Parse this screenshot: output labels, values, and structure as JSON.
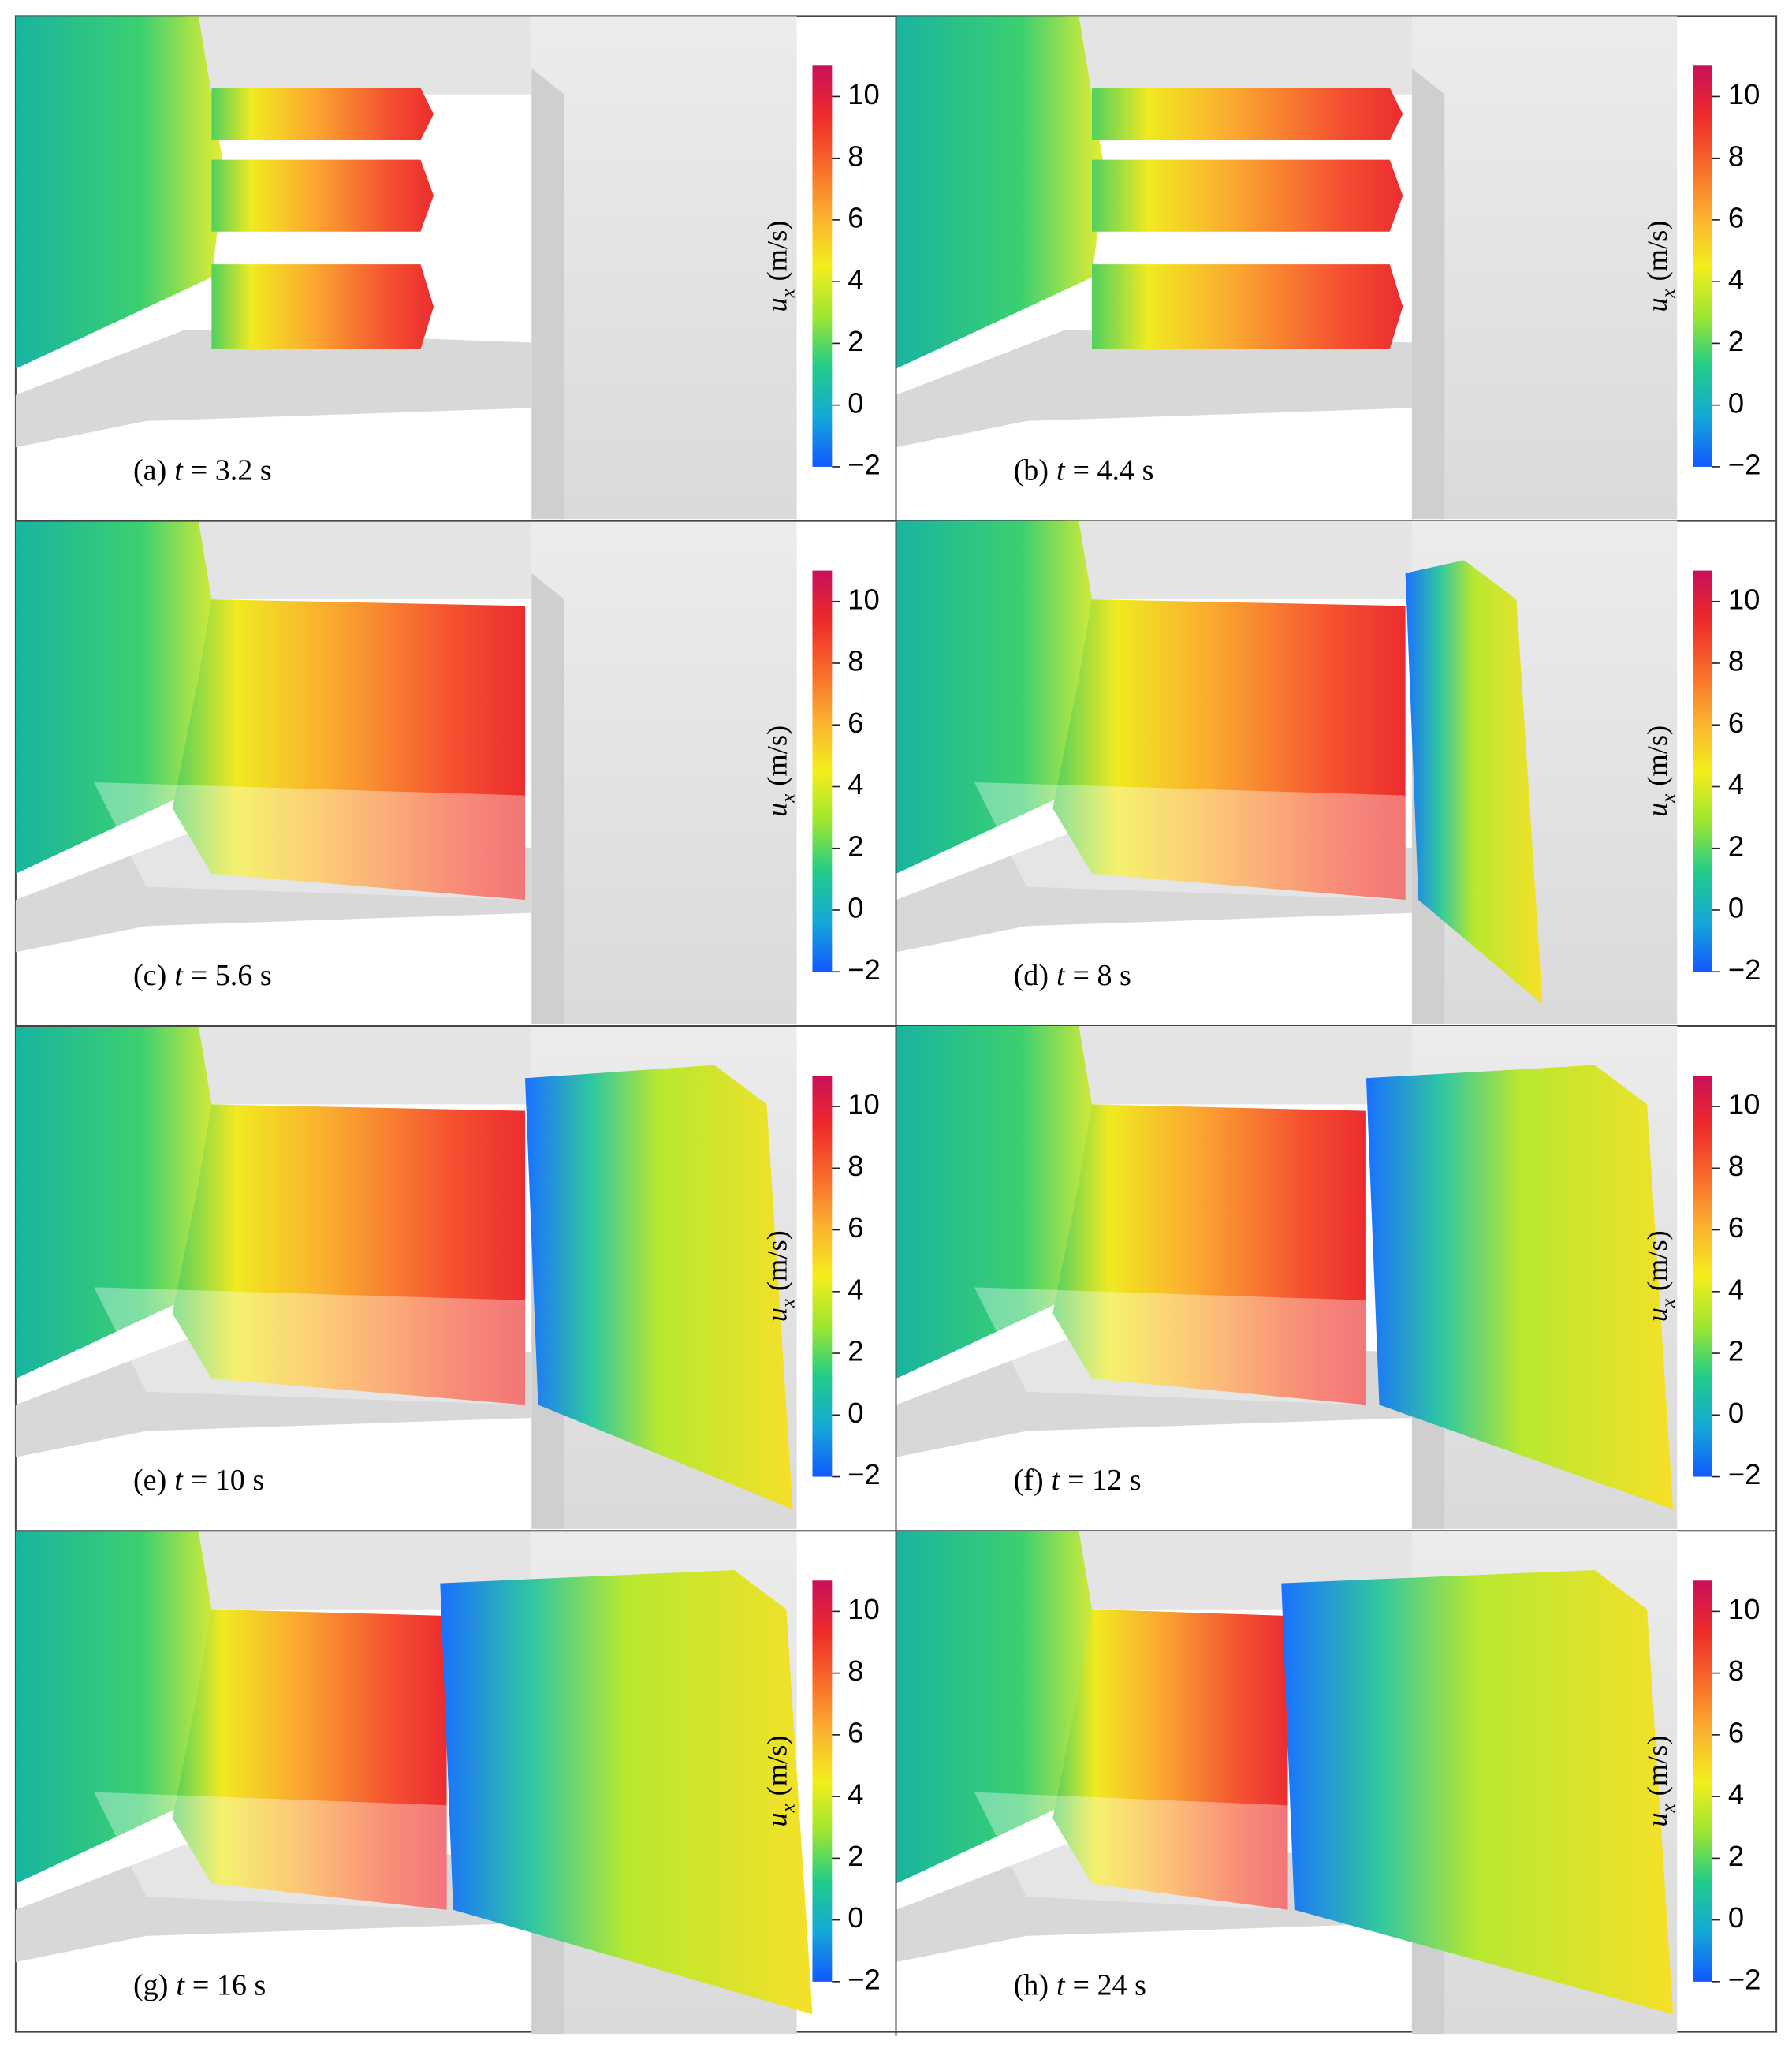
{
  "colorbar": {
    "symbol": "u",
    "subscript": "x",
    "unit": "(m/s)",
    "range": [
      -2,
      11
    ],
    "ticks": [
      {
        "value": -2,
        "label": "−2"
      },
      0,
      2,
      4,
      6,
      8,
      10
    ],
    "colors": [
      "#1258ff",
      "#14a8d8",
      "#22cc88",
      "#9ee630",
      "#f4ee1c",
      "#fbb030",
      "#f86a2a",
      "#ee2a2a",
      "#c8105a"
    ]
  },
  "panels": [
    {
      "letter": "(a)",
      "variable": "t",
      "time": "= 3.2 s"
    },
    {
      "letter": "(b)",
      "variable": "t",
      "time": "= 4.4 s"
    },
    {
      "letter": "(c)",
      "variable": "t",
      "time": "= 5.6 s"
    },
    {
      "letter": "(d)",
      "variable": "t",
      "time": "= 8 s"
    },
    {
      "letter": "(e)",
      "variable": "t",
      "time": "= 10 s"
    },
    {
      "letter": "(f)",
      "variable": "t",
      "time": "= 12 s"
    },
    {
      "letter": "(g)",
      "variable": "t",
      "time": "= 16 s"
    },
    {
      "letter": "(h)",
      "variable": "t",
      "time": "= 24 s"
    }
  ]
}
